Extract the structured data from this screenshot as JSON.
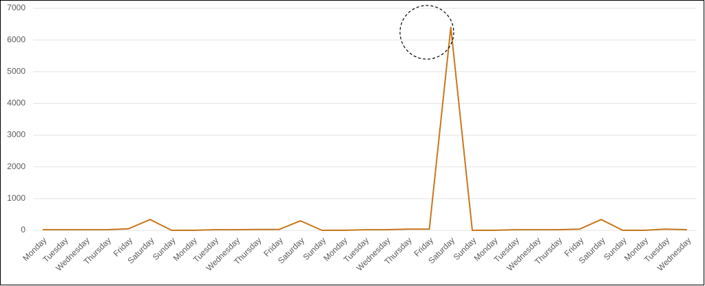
{
  "chart_data": {
    "type": "line",
    "categories": [
      "Monday",
      "Tuesday",
      "Wednesday",
      "Thursday",
      "Friday",
      "Saturday",
      "Sunday",
      "Monday",
      "Tuesday",
      "Wednesday",
      "Thursday",
      "Friday",
      "Saturday",
      "Sunday",
      "Monday",
      "Tuesday",
      "Wednesday",
      "Thursday",
      "Friday",
      "Saturday",
      "Sunday",
      "Monday",
      "Tuesday",
      "Wednesday",
      "Thursday",
      "Friday",
      "Saturday",
      "Sunday",
      "Monday",
      "Tuesday",
      "Wednesday"
    ],
    "series": [
      {
        "color": "#c8761c",
        "values": [
          20,
          20,
          20,
          20,
          50,
          340,
          0,
          0,
          20,
          20,
          25,
          25,
          300,
          0,
          0,
          20,
          20,
          40,
          40,
          6400,
          0,
          0,
          20,
          20,
          20,
          40,
          340,
          0,
          0,
          40,
          20
        ]
      }
    ],
    "ylim": [
      0,
      7000
    ],
    "yticks": [
      0,
      1000,
      2000,
      3000,
      4000,
      5000,
      6000,
      7000
    ],
    "grid": true
  }
}
